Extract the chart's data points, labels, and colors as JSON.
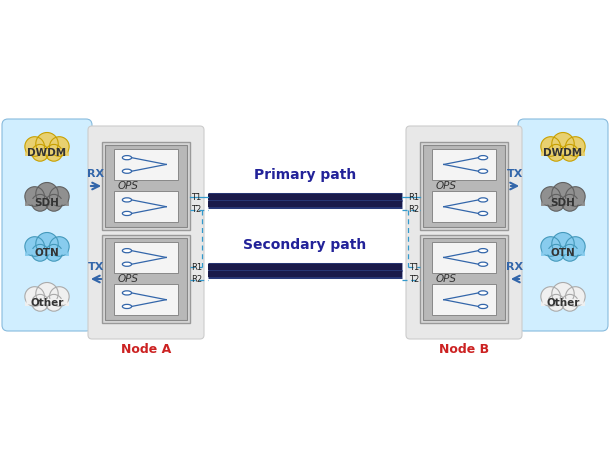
{
  "bg_color": "#ffffff",
  "node_a_label": "Node A",
  "node_b_label": "Node B",
  "primary_path_label": "Primary path",
  "secondary_path_label": "Secondary path",
  "ops_label": "OPS",
  "cloud_labels": [
    "DWDM",
    "SDH",
    "OTN",
    "Other"
  ],
  "cloud_colors": [
    "#e8d070",
    "#909090",
    "#88ccee",
    "#f0f0f0"
  ],
  "cloud_edge_colors": [
    "#c8a000",
    "#606060",
    "#4499bb",
    "#aaaaaa"
  ],
  "rx_tx_color": "#3366aa",
  "node_label_color": "#cc2222",
  "path_label_color": "#222299",
  "port_label_color": "#222222",
  "outer_node_color": "#d8d8d8",
  "inner_ops_color": "#b8b8b8",
  "switch_box_color": "#f4f4f4",
  "fiber_dark": "#1a1a4a",
  "fiber_mid": "#2a3a7a",
  "dashed_color": "#3399cc",
  "panel_bg": "#d0eeff",
  "panel_edge": "#88bbdd"
}
